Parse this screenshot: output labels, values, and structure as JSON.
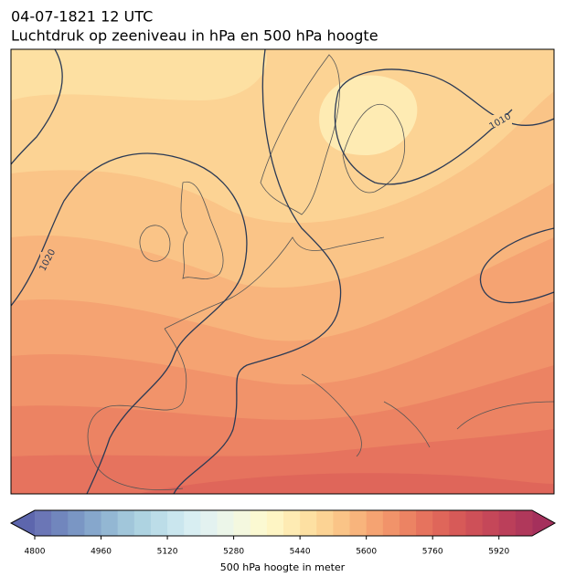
{
  "header": {
    "title_line1": "04-07-1821 12 UTC",
    "title_line2": "Luchtdruk op zeeniveau in hPa en 500 hPa hoogte"
  },
  "map": {
    "contour_labels": [
      "1020",
      "1010"
    ]
  },
  "colorbar": {
    "label": "500 hPa hoogte in meter",
    "lim": [
      4800,
      6000
    ],
    "ticks": [
      4800,
      4960,
      5120,
      5280,
      5440,
      5600,
      5760,
      5920
    ],
    "under_color": "#5d66ad",
    "over_color": "#a5305c",
    "colors": [
      "#6b76b6",
      "#7186bd",
      "#7a96c4",
      "#86a7cc",
      "#93b7d3",
      "#a1c6da",
      "#aed3e1",
      "#bcdde8",
      "#cae6ee",
      "#d8eef2",
      "#e3f2f0",
      "#ecf6e9",
      "#f4f8df",
      "#fbf9d2",
      "#fef5c4",
      "#feebb3",
      "#fde0a2",
      "#fcd394",
      "#fac487",
      "#f8b47c",
      "#f5a372",
      "#f1936a",
      "#ec8363",
      "#e6735e",
      "#df665a",
      "#d75a58",
      "#ce5058",
      "#c54759",
      "#bb3f5a",
      "#b0385b"
    ]
  }
}
